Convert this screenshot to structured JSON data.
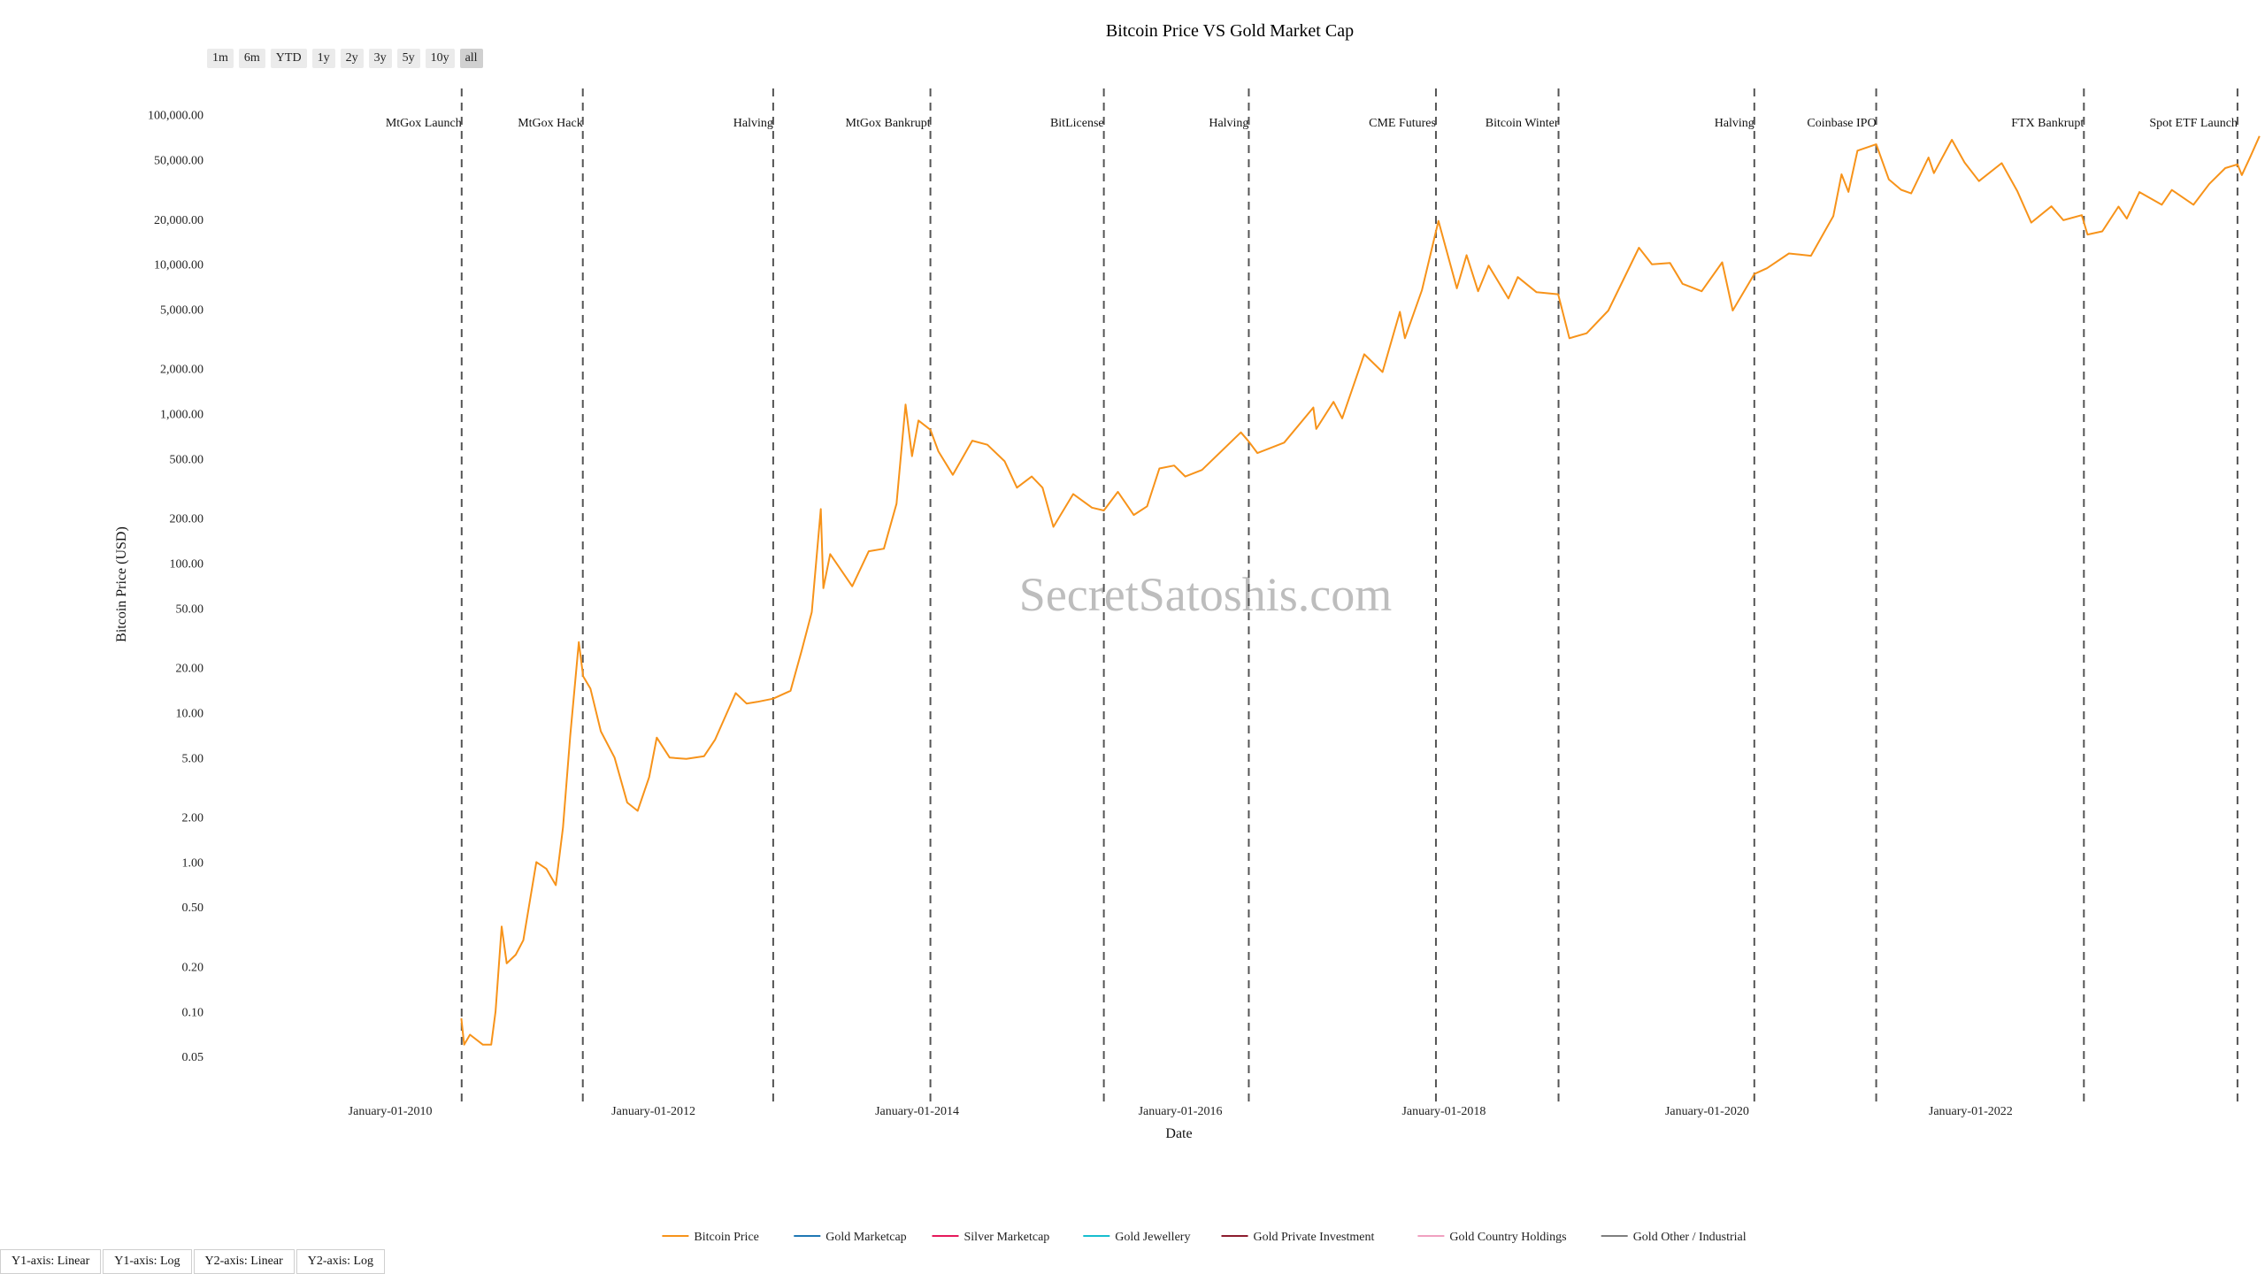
{
  "title": "Bitcoin Price VS Gold Market Cap",
  "range_buttons": [
    {
      "label": "1m",
      "active": false
    },
    {
      "label": "6m",
      "active": false
    },
    {
      "label": "YTD",
      "active": false
    },
    {
      "label": "1y",
      "active": false
    },
    {
      "label": "2y",
      "active": false
    },
    {
      "label": "3y",
      "active": false
    },
    {
      "label": "5y",
      "active": false
    },
    {
      "label": "10y",
      "active": false
    },
    {
      "label": "all",
      "active": true
    }
  ],
  "axis_buttons": [
    "Y1-axis: Linear",
    "Y1-axis: Log",
    "Y2-axis: Linear",
    "Y2-axis: Log"
  ],
  "watermark": "SecretSatoshis.com",
  "colors": {
    "bitcoin": "#f7931a",
    "gold_marketcap": "#1f77b4",
    "silver_marketcap": "#e6195b",
    "gold_jewellery": "#17becf",
    "gold_private_investment": "#8c1c2e",
    "gold_country_holdings": "#f0a0c0",
    "gold_other_industrial": "#7f7f7f"
  },
  "chart_data": {
    "type": "line",
    "title": "Bitcoin Price VS Gold Market Cap",
    "xlabel": "Date",
    "ylabel": "Bitcoin Price (USD)",
    "yscale": "log",
    "xlim": [
      "2008-08-01",
      "2024-03-15"
    ],
    "ylim": [
      0.025,
      150000
    ],
    "x_ticks": [
      "January-01-2010",
      "January-01-2012",
      "January-01-2014",
      "January-01-2016",
      "January-01-2018",
      "January-01-2020",
      "January-01-2022"
    ],
    "y_ticks": [
      {
        "v": 0.05,
        "label": "0.05"
      },
      {
        "v": 0.1,
        "label": "0.10"
      },
      {
        "v": 0.2,
        "label": "0.20"
      },
      {
        "v": 0.5,
        "label": "0.50"
      },
      {
        "v": 1,
        "label": "1.00"
      },
      {
        "v": 2,
        "label": "2.00"
      },
      {
        "v": 5,
        "label": "5.00"
      },
      {
        "v": 10,
        "label": "10.00"
      },
      {
        "v": 20,
        "label": "20.00"
      },
      {
        "v": 50,
        "label": "50.00"
      },
      {
        "v": 100,
        "label": "100.00"
      },
      {
        "v": 200,
        "label": "200.00"
      },
      {
        "v": 500,
        "label": "500.00"
      },
      {
        "v": 1000,
        "label": "1,000.00"
      },
      {
        "v": 2000,
        "label": "2,000.00"
      },
      {
        "v": 5000,
        "label": "5,000.00"
      },
      {
        "v": 10000,
        "label": "10,000.00"
      },
      {
        "v": 20000,
        "label": "20,000.00"
      },
      {
        "v": 50000,
        "label": "50,000.00"
      },
      {
        "v": 100000,
        "label": "100,000.00"
      }
    ],
    "events": [
      {
        "date": "2010-07-18",
        "label": "MtGox Launch"
      },
      {
        "date": "2011-06-19",
        "label": "MtGox Hack"
      },
      {
        "date": "2012-11-28",
        "label": "Halving"
      },
      {
        "date": "2014-02-07",
        "label": "MtGox Bankrupt"
      },
      {
        "date": "2015-06-03",
        "label": "BitLicense"
      },
      {
        "date": "2016-07-09",
        "label": "Halving"
      },
      {
        "date": "2017-12-10",
        "label": "CME Futures"
      },
      {
        "date": "2018-11-15",
        "label": "Bitcoin Winter"
      },
      {
        "date": "2020-05-11",
        "label": "Halving"
      },
      {
        "date": "2021-04-14",
        "label": "Coinbase IPO"
      },
      {
        "date": "2022-11-11",
        "label": "FTX Bankrupt"
      },
      {
        "date": "2024-01-11",
        "label": "Spot ETF Launch"
      }
    ],
    "series": [
      {
        "name": "Bitcoin Price",
        "points": [
          [
            "2010-07-17",
            0.09
          ],
          [
            "2010-07-25",
            0.06
          ],
          [
            "2010-08-10",
            0.07
          ],
          [
            "2010-09-15",
            0.06
          ],
          [
            "2010-10-08",
            0.06
          ],
          [
            "2010-10-20",
            0.1
          ],
          [
            "2010-11-06",
            0.37
          ],
          [
            "2010-11-20",
            0.21
          ],
          [
            "2010-12-15",
            0.24
          ],
          [
            "2011-01-05",
            0.3
          ],
          [
            "2011-02-10",
            1.0
          ],
          [
            "2011-03-10",
            0.9
          ],
          [
            "2011-04-05",
            0.7
          ],
          [
            "2011-04-25",
            1.7
          ],
          [
            "2011-05-15",
            7.0
          ],
          [
            "2011-06-08",
            29.6
          ],
          [
            "2011-06-20",
            17.5
          ],
          [
            "2011-07-10",
            14.5
          ],
          [
            "2011-08-08",
            7.5
          ],
          [
            "2011-09-15",
            5.0
          ],
          [
            "2011-10-20",
            2.5
          ],
          [
            "2011-11-18",
            2.2
          ],
          [
            "2011-12-20",
            3.7
          ],
          [
            "2012-01-10",
            6.8
          ],
          [
            "2012-02-15",
            5.0
          ],
          [
            "2012-04-01",
            4.9
          ],
          [
            "2012-05-20",
            5.1
          ],
          [
            "2012-06-20",
            6.6
          ],
          [
            "2012-08-16",
            13.5
          ],
          [
            "2012-09-15",
            11.5
          ],
          [
            "2012-10-15",
            11.8
          ],
          [
            "2012-11-28",
            12.4
          ],
          [
            "2013-01-15",
            14.0
          ],
          [
            "2013-02-15",
            26.0
          ],
          [
            "2013-03-15",
            47.0
          ],
          [
            "2013-04-09",
            230.0
          ],
          [
            "2013-04-16",
            68.0
          ],
          [
            "2013-05-05",
            115.0
          ],
          [
            "2013-07-05",
            70.0
          ],
          [
            "2013-08-20",
            120.0
          ],
          [
            "2013-10-01",
            125.0
          ],
          [
            "2013-11-05",
            250.0
          ],
          [
            "2013-11-30",
            1150.0
          ],
          [
            "2013-12-18",
            520.0
          ],
          [
            "2014-01-05",
            900.0
          ],
          [
            "2014-02-07",
            780.0
          ],
          [
            "2014-03-01",
            560.0
          ],
          [
            "2014-04-10",
            390.0
          ],
          [
            "2014-06-03",
            660.0
          ],
          [
            "2014-07-15",
            620.0
          ],
          [
            "2014-09-01",
            480.0
          ],
          [
            "2014-10-05",
            320.0
          ],
          [
            "2014-11-15",
            380.0
          ],
          [
            "2014-12-15",
            320.0
          ],
          [
            "2015-01-14",
            175.0
          ],
          [
            "2015-03-10",
            290.0
          ],
          [
            "2015-05-01",
            235.0
          ],
          [
            "2015-06-03",
            225.0
          ],
          [
            "2015-07-12",
            300.0
          ],
          [
            "2015-08-25",
            210.0
          ],
          [
            "2015-10-01",
            240.0
          ],
          [
            "2015-11-04",
            430.0
          ],
          [
            "2015-12-15",
            450.0
          ],
          [
            "2016-01-15",
            380.0
          ],
          [
            "2016-03-01",
            420.0
          ],
          [
            "2016-06-17",
            750.0
          ],
          [
            "2016-07-09",
            650.0
          ],
          [
            "2016-08-02",
            545.0
          ],
          [
            "2016-10-15",
            640.0
          ],
          [
            "2017-01-04",
            1100.0
          ],
          [
            "2017-01-12",
            790.0
          ],
          [
            "2017-03-01",
            1200.0
          ],
          [
            "2017-03-25",
            930.0
          ],
          [
            "2017-05-25",
            2500.0
          ],
          [
            "2017-07-15",
            1900.0
          ],
          [
            "2017-09-01",
            4800.0
          ],
          [
            "2017-09-15",
            3200.0
          ],
          [
            "2017-11-01",
            6700.0
          ],
          [
            "2017-12-17",
            19500.0
          ],
          [
            "2018-02-06",
            6900.0
          ],
          [
            "2018-03-05",
            11500.0
          ],
          [
            "2018-04-06",
            6600.0
          ],
          [
            "2018-05-05",
            9800.0
          ],
          [
            "2018-06-29",
            5900.0
          ],
          [
            "2018-07-25",
            8200.0
          ],
          [
            "2018-09-15",
            6500.0
          ],
          [
            "2018-11-14",
            6300.0
          ],
          [
            "2018-12-15",
            3200.0
          ],
          [
            "2019-02-01",
            3450.0
          ],
          [
            "2019-04-02",
            4900.0
          ],
          [
            "2019-06-26",
            12900.0
          ],
          [
            "2019-08-01",
            10000.0
          ],
          [
            "2019-09-20",
            10200.0
          ],
          [
            "2019-10-25",
            7400.0
          ],
          [
            "2019-12-17",
            6600.0
          ],
          [
            "2020-02-12",
            10300.0
          ],
          [
            "2020-03-12",
            4900.0
          ],
          [
            "2020-05-11",
            8600.0
          ],
          [
            "2020-06-15",
            9400.0
          ],
          [
            "2020-08-15",
            11800.0
          ],
          [
            "2020-10-15",
            11400.0
          ],
          [
            "2020-12-16",
            21000.0
          ],
          [
            "2021-01-08",
            40000.0
          ],
          [
            "2021-01-27",
            30500.0
          ],
          [
            "2021-02-21",
            57500.0
          ],
          [
            "2021-04-14",
            63500.0
          ],
          [
            "2021-05-19",
            37000.0
          ],
          [
            "2021-06-22",
            31500.0
          ],
          [
            "2021-07-20",
            29800.0
          ],
          [
            "2021-09-06",
            51800.0
          ],
          [
            "2021-09-21",
            40700.0
          ],
          [
            "2021-11-10",
            68000.0
          ],
          [
            "2021-12-15",
            48000.0
          ],
          [
            "2022-01-24",
            36000.0
          ],
          [
            "2022-03-28",
            47500.0
          ],
          [
            "2022-05-10",
            31000.0
          ],
          [
            "2022-06-18",
            19000.0
          ],
          [
            "2022-08-13",
            24400.0
          ],
          [
            "2022-09-15",
            19700.0
          ],
          [
            "2022-11-05",
            21300.0
          ],
          [
            "2022-11-21",
            15800.0
          ],
          [
            "2023-01-01",
            16600.0
          ],
          [
            "2023-02-15",
            24300.0
          ],
          [
            "2023-03-10",
            20200.0
          ],
          [
            "2023-04-14",
            30400.0
          ],
          [
            "2023-06-15",
            25000.0
          ],
          [
            "2023-07-13",
            31400.0
          ],
          [
            "2023-09-11",
            25000.0
          ],
          [
            "2023-10-25",
            34500.0
          ],
          [
            "2023-12-08",
            44000.0
          ],
          [
            "2024-01-11",
            46600.0
          ],
          [
            "2024-01-23",
            39500.0
          ],
          [
            "2024-02-15",
            52000.0
          ],
          [
            "2024-03-12",
            72000.0
          ]
        ]
      },
      {
        "name": "Gold Marketcap",
        "points": []
      },
      {
        "name": "Silver Marketcap",
        "points": []
      },
      {
        "name": "Gold Jewellery",
        "points": []
      },
      {
        "name": "Gold Private Investment",
        "points": []
      },
      {
        "name": "Gold Country Holdings",
        "points": []
      },
      {
        "name": "Gold Other / Industrial",
        "points": []
      }
    ],
    "legend": [
      "Bitcoin Price",
      "Gold Marketcap",
      "Silver Marketcap",
      "Gold Jewellery",
      "Gold Private Investment",
      "Gold Country Holdings",
      "Gold Other / Industrial"
    ],
    "legend_position": "bottom",
    "grid": false
  }
}
